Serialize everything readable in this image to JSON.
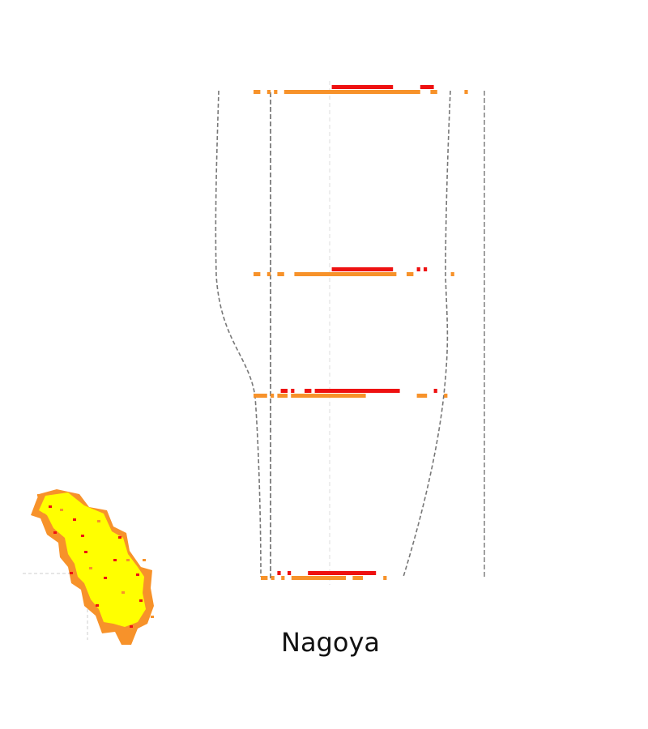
{
  "title": "Nagoya",
  "colors": {
    "red": "#ee1111",
    "orange": "#f7922a",
    "yellow": "#ffff00",
    "gray": "#777777"
  },
  "chart_data": {
    "type": "other",
    "title": "Nagoya",
    "grid": false,
    "legend": "none",
    "rows": [
      {
        "red_segments": [
          [
            18,
            36
          ],
          [
            44,
            48
          ]
        ],
        "orange_segments": [
          [
            0,
            2
          ],
          [
            4,
            5
          ],
          [
            6,
            7
          ],
          [
            9,
            49
          ],
          [
            52,
            54
          ],
          [
            62,
            63
          ]
        ]
      },
      {
        "red_segments": [
          [
            18,
            36
          ],
          [
            43,
            44
          ],
          [
            45,
            46
          ]
        ],
        "orange_segments": [
          [
            0,
            2
          ],
          [
            4,
            5
          ],
          [
            7,
            9
          ],
          [
            12,
            42
          ],
          [
            45,
            47
          ],
          [
            58,
            59
          ]
        ]
      },
      {
        "red_segments": [
          [
            3,
            5
          ],
          [
            6,
            7
          ],
          [
            10,
            12
          ],
          [
            13,
            38
          ],
          [
            48,
            49
          ]
        ],
        "orange_segments": [
          [
            0,
            4
          ],
          [
            5,
            6
          ],
          [
            7,
            10
          ],
          [
            11,
            33
          ],
          [
            48,
            51
          ],
          [
            56,
            57
          ]
        ]
      },
      {
        "red_segments": [
          [
            2,
            3
          ],
          [
            5,
            6
          ],
          [
            11,
            31
          ]
        ],
        "orange_segments": [
          [
            0,
            2
          ],
          [
            3,
            4
          ],
          [
            6,
            7
          ],
          [
            9,
            25
          ],
          [
            27,
            30
          ],
          [
            36,
            37
          ]
        ]
      }
    ],
    "outline_left": [
      [
        0,
        0
      ],
      [
        -4,
        0.25
      ],
      [
        -4,
        0.48
      ],
      [
        4,
        0.84
      ],
      [
        4,
        1
      ]
    ],
    "outline_right": [
      [
        0,
        0
      ],
      [
        0,
        0.5
      ],
      [
        -4,
        0.7
      ],
      [
        -11,
        1
      ]
    ]
  }
}
